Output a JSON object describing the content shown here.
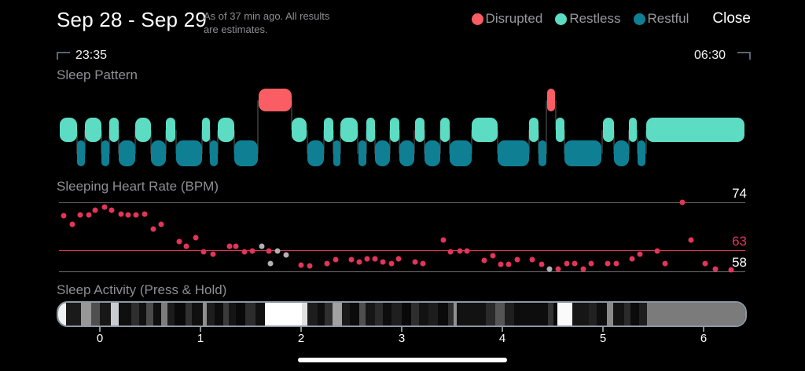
{
  "header": {
    "date_range": "Sep 28 - Sep 29",
    "as_of": "As of 37 min ago. All results are estimates.",
    "close_label": "Close",
    "legend": [
      {
        "label": "Disrupted",
        "color": "#fa5d63"
      },
      {
        "label": "Restless",
        "color": "#5cdcc3"
      },
      {
        "label": "Restful",
        "color": "#0f8093"
      }
    ]
  },
  "times": {
    "start": "23:35",
    "end": "06:30"
  },
  "sections": {
    "pattern_title": "Sleep Pattern",
    "hr_title": "Sleeping Heart Rate (BPM)",
    "activity_title": "Sleep Activity (Press & Hold)"
  },
  "chart_data": [
    {
      "type": "hypnogram",
      "title": "Sleep Pattern",
      "time_start": "23:35",
      "time_end": "06:30",
      "states": {
        "disrupted": "#fa5d63",
        "restless": "#5cdcc3",
        "restful": "#0f8093"
      },
      "segments_format": "[state, start_pct_of_night, end_pct_of_night]",
      "segments": [
        [
          "restless",
          0.7,
          3.2
        ],
        [
          "restful",
          3.2,
          4.3
        ],
        [
          "restless",
          4.3,
          6.7
        ],
        [
          "restful",
          6.7,
          7.8
        ],
        [
          "restless",
          7.8,
          9.2
        ],
        [
          "restful",
          9.2,
          11.6
        ],
        [
          "restless",
          11.6,
          13.9
        ],
        [
          "restful",
          13.9,
          16.0
        ],
        [
          "restless",
          16.0,
          17.4
        ],
        [
          "restful",
          17.5,
          21.3
        ],
        [
          "restless",
          21.2,
          22.4
        ],
        [
          "restful",
          22.4,
          23.5
        ],
        [
          "restless",
          23.5,
          25.9
        ],
        [
          "restful",
          25.9,
          29.3
        ],
        [
          "disrupted",
          29.4,
          34.2
        ],
        [
          "restless",
          34.2,
          36.4
        ],
        [
          "restful",
          36.5,
          38.9
        ],
        [
          "restless",
          38.9,
          40.2
        ],
        [
          "restful",
          40.2,
          41.3
        ],
        [
          "restless",
          41.3,
          43.7
        ],
        [
          "restful",
          43.9,
          45.0
        ],
        [
          "restless",
          45.0,
          46.3
        ],
        [
          "restful",
          46.3,
          48.4
        ],
        [
          "restless",
          48.4,
          49.8
        ],
        [
          "restful",
          49.8,
          51.9
        ],
        [
          "restless",
          52.0,
          53.4
        ],
        [
          "restful",
          53.4,
          55.7
        ],
        [
          "restless",
          55.7,
          57.0
        ],
        [
          "restful",
          57.0,
          60.2
        ],
        [
          "restless",
          60.2,
          64.0
        ],
        [
          "restful",
          64.0,
          68.5
        ],
        [
          "restless",
          68.5,
          69.9
        ],
        [
          "restful",
          69.9,
          71.0
        ],
        [
          "disrupted",
          71.1,
          72.3
        ],
        [
          "restless",
          72.4,
          73.6
        ],
        [
          "restful",
          73.6,
          79.0
        ],
        [
          "restless",
          79.2,
          80.8
        ],
        [
          "restful",
          80.8,
          83.0
        ],
        [
          "restless",
          83.0,
          84.1
        ],
        [
          "restful",
          84.2,
          85.3
        ],
        [
          "restless",
          85.5,
          99.7
        ]
      ]
    },
    {
      "type": "scatter",
      "title": "Sleeping Heart Rate (BPM)",
      "ylabel": "BPM",
      "ylim": [
        57,
        75
      ],
      "point_color": "#e23558",
      "gray_point_color": "#b0b0b5",
      "ref_lines": [
        {
          "bpm": 74,
          "label": "74",
          "line_color": "#6e6e73",
          "label_color": "#ffffff"
        },
        {
          "bpm": 63,
          "label": "63",
          "line_color": "#e23558",
          "label_color": "#e23558"
        },
        {
          "bpm": 58,
          "label": "58",
          "line_color": "#6e6e73",
          "label_color": "#ffffff"
        }
      ],
      "points_format": "[x_pct_of_night, bpm]",
      "points": [
        [
          0.7,
          71
        ],
        [
          1.9,
          69
        ],
        [
          3.1,
          71.1
        ],
        [
          4.4,
          71.1
        ],
        [
          5.3,
          72.2
        ],
        [
          6.6,
          73
        ],
        [
          7.7,
          72.2
        ],
        [
          9.0,
          71.2
        ],
        [
          10.1,
          71.1
        ],
        [
          11.2,
          71.1
        ],
        [
          12.5,
          71.3
        ],
        [
          13.7,
          67.8
        ],
        [
          14.9,
          68.9
        ],
        [
          17.5,
          64.9
        ],
        [
          18.6,
          63.8
        ],
        [
          19.9,
          65.9
        ],
        [
          21.1,
          62.6
        ],
        [
          22.4,
          62
        ],
        [
          24.8,
          63.8
        ],
        [
          25.8,
          63.9
        ],
        [
          27.0,
          62.6
        ],
        [
          28.2,
          62.7
        ],
        [
          30.6,
          62.7
        ],
        [
          35.3,
          59.5
        ],
        [
          36.5,
          59.3
        ],
        [
          39.1,
          59.8
        ],
        [
          40.3,
          60.8
        ],
        [
          42.6,
          60.8
        ],
        [
          43.8,
          60.1
        ],
        [
          44.9,
          60.9
        ],
        [
          46.1,
          60.9
        ],
        [
          47.2,
          60.1
        ],
        [
          48.4,
          59.8
        ],
        [
          49.5,
          60.9
        ],
        [
          51.9,
          60.1
        ],
        [
          53.0,
          59.8
        ],
        [
          56.0,
          65.3
        ],
        [
          57.1,
          62.6
        ],
        [
          58.4,
          62.7
        ],
        [
          59.5,
          62.7
        ],
        [
          62.0,
          60.6
        ],
        [
          63.2,
          61.7
        ],
        [
          64.4,
          59.7
        ],
        [
          65.5,
          59.7
        ],
        [
          66.8,
          60.8
        ],
        [
          69.0,
          60.8
        ],
        [
          70.3,
          59.7
        ],
        [
          72.7,
          58.6
        ],
        [
          74.0,
          59.8
        ],
        [
          75.2,
          59.8
        ],
        [
          76.4,
          58.6
        ],
        [
          77.6,
          59.8
        ],
        [
          80.0,
          59.8
        ],
        [
          81.2,
          59.8
        ],
        [
          83.5,
          60.9
        ],
        [
          84.7,
          62
        ],
        [
          87.2,
          62.7
        ],
        [
          88.3,
          59.8
        ],
        [
          90.8,
          74
        ],
        [
          92.1,
          65.2
        ],
        [
          94.2,
          59.8
        ],
        [
          95.7,
          58.6
        ],
        [
          97.9,
          58.4
        ]
      ],
      "gray_points": [
        [
          29.5,
          63.8
        ],
        [
          30.8,
          59.8
        ],
        [
          31.9,
          62.7
        ],
        [
          33.1,
          61.9
        ],
        [
          71.5,
          58.5
        ]
      ]
    },
    {
      "type": "heatmap-strip",
      "title": "Sleep Activity (Press & Hold)",
      "axis_ticks": [
        "0",
        "1",
        "2",
        "3",
        "4",
        "5",
        "6"
      ],
      "border_color": "#8c98a4",
      "bands_format": "[relative_width, gray_color]",
      "bands": [
        [
          10,
          "#eef1f4"
        ],
        [
          20,
          "#1a1a1a"
        ],
        [
          13,
          "#979797"
        ],
        [
          11,
          "#4f4f4f"
        ],
        [
          15,
          "#171717"
        ],
        [
          10,
          "#c9cdd1"
        ],
        [
          16,
          "#0f0f0f"
        ],
        [
          11,
          "#2e2e2e"
        ],
        [
          9,
          "#111111"
        ],
        [
          9,
          "#4a4a4a"
        ],
        [
          10,
          "#0f0f0f"
        ],
        [
          8,
          "#7d7d7d"
        ],
        [
          10,
          "#1c1c1c"
        ],
        [
          14,
          "#090909"
        ],
        [
          8,
          "#303030"
        ],
        [
          15,
          "#101010"
        ],
        [
          5,
          "#8f8f8f"
        ],
        [
          10,
          "#1e1e1e"
        ],
        [
          11,
          "#0c0c0c"
        ],
        [
          7,
          "#3a3a3a"
        ],
        [
          10,
          "#151515"
        ],
        [
          12,
          "#090909"
        ],
        [
          13,
          "#2c2c2c"
        ],
        [
          13,
          "#101010"
        ],
        [
          48,
          "#ffffff"
        ],
        [
          7,
          "#e0e0e0"
        ],
        [
          13,
          "#1d1d1d"
        ],
        [
          10,
          "#0e0e0e"
        ],
        [
          10,
          "#2f2f2f"
        ],
        [
          12,
          "#a2a2a2"
        ],
        [
          10,
          "#1a1a1a"
        ],
        [
          13,
          "#0b0b0b"
        ],
        [
          8,
          "#4f4f4f"
        ],
        [
          12,
          "#161616"
        ],
        [
          10,
          "#2b2b2b"
        ],
        [
          12,
          "#0d0d0d"
        ],
        [
          13,
          "#1f1f1f"
        ],
        [
          12,
          "#090909"
        ],
        [
          11,
          "#2e2e2e"
        ],
        [
          12,
          "#121212"
        ],
        [
          12,
          "#1d1d1d"
        ],
        [
          13,
          "#0a0a0a"
        ],
        [
          8,
          "#2e2e2e"
        ],
        [
          4,
          "#909090"
        ],
        [
          38,
          "#121212"
        ],
        [
          12,
          "#2a2a2a"
        ],
        [
          12,
          "#555555"
        ],
        [
          13,
          "#1f1f1f"
        ],
        [
          44,
          "#0d0d0d"
        ],
        [
          7,
          "#333333"
        ],
        [
          5,
          "#0a0a0a"
        ],
        [
          19,
          "#fafafa"
        ],
        [
          22,
          "#161616"
        ],
        [
          10,
          "#222222"
        ],
        [
          14,
          "#0e0e0e"
        ],
        [
          8,
          "#8a8a8a"
        ],
        [
          14,
          "#131313"
        ],
        [
          8,
          "#2a2a2a"
        ],
        [
          12,
          "#0b0b0b"
        ],
        [
          10,
          "#1e1e1e"
        ],
        [
          128,
          "#7b7b7b"
        ]
      ]
    }
  ]
}
